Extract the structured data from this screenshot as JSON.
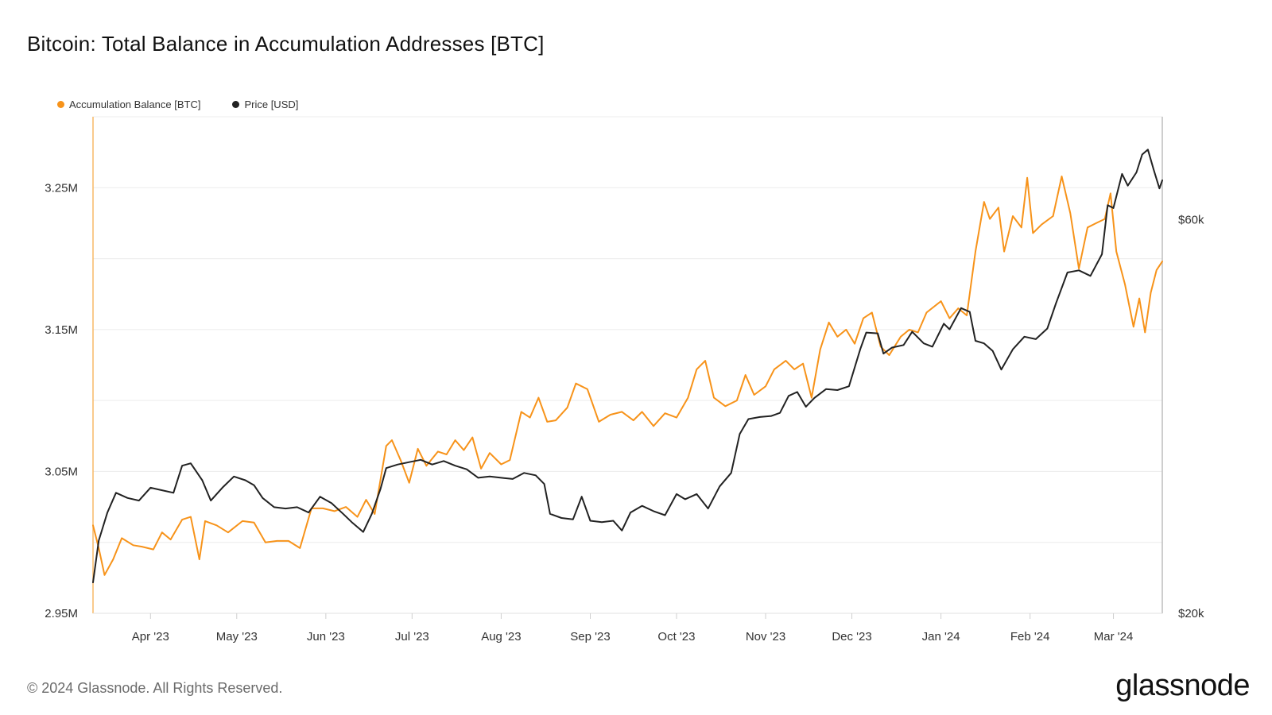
{
  "title": "Bitcoin: Total Balance in Accumulation Addresses [BTC]",
  "footer": "© 2024 Glassnode. All Rights Reserved.",
  "brand": "glassnode",
  "legend": [
    {
      "label": "Accumulation Balance [BTC]",
      "color": "#f7931a"
    },
    {
      "label": "Price [USD]",
      "color": "#222222"
    }
  ],
  "chart_data": {
    "type": "line",
    "title": "Bitcoin: Total Balance in Accumulation Addresses [BTC]",
    "x_range": [
      "2023-03-12",
      "2024-03-18"
    ],
    "x_ticks": [
      {
        "date": "2023-04-01",
        "label": "Apr '23"
      },
      {
        "date": "2023-05-01",
        "label": "May '23"
      },
      {
        "date": "2023-06-01",
        "label": "Jun '23"
      },
      {
        "date": "2023-07-01",
        "label": "Jul '23"
      },
      {
        "date": "2023-08-01",
        "label": "Aug '23"
      },
      {
        "date": "2023-09-01",
        "label": "Sep '23"
      },
      {
        "date": "2023-10-01",
        "label": "Oct '23"
      },
      {
        "date": "2023-11-01",
        "label": "Nov '23"
      },
      {
        "date": "2023-12-01",
        "label": "Dec '23"
      },
      {
        "date": "2024-01-01",
        "label": "Jan '24"
      },
      {
        "date": "2024-02-01",
        "label": "Feb '24"
      },
      {
        "date": "2024-03-01",
        "label": "Mar '24"
      }
    ],
    "y_left": {
      "min": 2950000,
      "max": 3300000,
      "ticks": [
        {
          "value": 2950000,
          "label": "2.95M"
        },
        {
          "value": 3050000,
          "label": "3.05M"
        },
        {
          "value": 3150000,
          "label": "3.15M"
        },
        {
          "value": 3250000,
          "label": "3.25M"
        }
      ]
    },
    "y_right": {
      "scale": "log",
      "min": 20000,
      "max": 80000,
      "ticks": [
        {
          "value": 20000,
          "label": "$20k"
        },
        {
          "value": 60000,
          "label": "$60k"
        }
      ]
    },
    "series": [
      {
        "name": "Accumulation Balance [BTC]",
        "axis": "left",
        "color": "#f7931a",
        "points": [
          [
            "2023-03-12",
            3012000
          ],
          [
            "2023-03-14",
            2996000
          ],
          [
            "2023-03-16",
            2977000
          ],
          [
            "2023-03-19",
            2988000
          ],
          [
            "2023-03-22",
            3003000
          ],
          [
            "2023-03-26",
            2998000
          ],
          [
            "2023-03-29",
            2997000
          ],
          [
            "2023-04-02",
            2995000
          ],
          [
            "2023-04-05",
            3007000
          ],
          [
            "2023-04-08",
            3002000
          ],
          [
            "2023-04-12",
            3016000
          ],
          [
            "2023-04-15",
            3018000
          ],
          [
            "2023-04-18",
            2988000
          ],
          [
            "2023-04-20",
            3015000
          ],
          [
            "2023-04-24",
            3012000
          ],
          [
            "2023-04-28",
            3007000
          ],
          [
            "2023-05-03",
            3015000
          ],
          [
            "2023-05-07",
            3014000
          ],
          [
            "2023-05-11",
            3000000
          ],
          [
            "2023-05-15",
            3001000
          ],
          [
            "2023-05-19",
            3001000
          ],
          [
            "2023-05-23",
            2996000
          ],
          [
            "2023-05-27",
            3024000
          ],
          [
            "2023-05-31",
            3024000
          ],
          [
            "2023-06-04",
            3022000
          ],
          [
            "2023-06-08",
            3025000
          ],
          [
            "2023-06-12",
            3018000
          ],
          [
            "2023-06-15",
            3030000
          ],
          [
            "2023-06-18",
            3020000
          ],
          [
            "2023-06-22",
            3068000
          ],
          [
            "2023-06-24",
            3072000
          ],
          [
            "2023-06-27",
            3058000
          ],
          [
            "2023-06-30",
            3042000
          ],
          [
            "2023-07-03",
            3066000
          ],
          [
            "2023-07-06",
            3054000
          ],
          [
            "2023-07-10",
            3064000
          ],
          [
            "2023-07-13",
            3062000
          ],
          [
            "2023-07-16",
            3072000
          ],
          [
            "2023-07-19",
            3065000
          ],
          [
            "2023-07-22",
            3074000
          ],
          [
            "2023-07-25",
            3052000
          ],
          [
            "2023-07-28",
            3063000
          ],
          [
            "2023-08-01",
            3055000
          ],
          [
            "2023-08-04",
            3058000
          ],
          [
            "2023-08-08",
            3092000
          ],
          [
            "2023-08-11",
            3088000
          ],
          [
            "2023-08-14",
            3102000
          ],
          [
            "2023-08-17",
            3085000
          ],
          [
            "2023-08-20",
            3086000
          ],
          [
            "2023-08-24",
            3095000
          ],
          [
            "2023-08-27",
            3112000
          ],
          [
            "2023-08-31",
            3108000
          ],
          [
            "2023-09-04",
            3085000
          ],
          [
            "2023-09-08",
            3090000
          ],
          [
            "2023-09-12",
            3092000
          ],
          [
            "2023-09-16",
            3086000
          ],
          [
            "2023-09-19",
            3092000
          ],
          [
            "2023-09-23",
            3082000
          ],
          [
            "2023-09-27",
            3091000
          ],
          [
            "2023-10-01",
            3088000
          ],
          [
            "2023-10-05",
            3102000
          ],
          [
            "2023-10-08",
            3122000
          ],
          [
            "2023-10-11",
            3128000
          ],
          [
            "2023-10-14",
            3102000
          ],
          [
            "2023-10-18",
            3096000
          ],
          [
            "2023-10-22",
            3100000
          ],
          [
            "2023-10-25",
            3118000
          ],
          [
            "2023-10-28",
            3104000
          ],
          [
            "2023-11-01",
            3110000
          ],
          [
            "2023-11-04",
            3122000
          ],
          [
            "2023-11-08",
            3128000
          ],
          [
            "2023-11-11",
            3122000
          ],
          [
            "2023-11-14",
            3126000
          ],
          [
            "2023-11-17",
            3102000
          ],
          [
            "2023-11-20",
            3136000
          ],
          [
            "2023-11-23",
            3155000
          ],
          [
            "2023-11-26",
            3145000
          ],
          [
            "2023-11-29",
            3150000
          ],
          [
            "2023-12-02",
            3140000
          ],
          [
            "2023-12-05",
            3158000
          ],
          [
            "2023-12-08",
            3162000
          ],
          [
            "2023-12-11",
            3138000
          ],
          [
            "2023-12-14",
            3132000
          ],
          [
            "2023-12-18",
            3145000
          ],
          [
            "2023-12-21",
            3150000
          ],
          [
            "2023-12-24",
            3148000
          ],
          [
            "2023-12-27",
            3162000
          ],
          [
            "2024-01-01",
            3170000
          ],
          [
            "2024-01-04",
            3158000
          ],
          [
            "2024-01-07",
            3165000
          ],
          [
            "2024-01-10",
            3160000
          ],
          [
            "2024-01-13",
            3205000
          ],
          [
            "2024-01-16",
            3240000
          ],
          [
            "2024-01-18",
            3228000
          ],
          [
            "2024-01-21",
            3236000
          ],
          [
            "2024-01-23",
            3205000
          ],
          [
            "2024-01-26",
            3230000
          ],
          [
            "2024-01-29",
            3222000
          ],
          [
            "2024-01-31",
            3257000
          ],
          [
            "2024-02-02",
            3218000
          ],
          [
            "2024-02-05",
            3224000
          ],
          [
            "2024-02-09",
            3230000
          ],
          [
            "2024-02-12",
            3258000
          ],
          [
            "2024-02-15",
            3232000
          ],
          [
            "2024-02-18",
            3193000
          ],
          [
            "2024-02-21",
            3222000
          ],
          [
            "2024-02-24",
            3225000
          ],
          [
            "2024-02-27",
            3228000
          ],
          [
            "2024-02-29",
            3246000
          ],
          [
            "2024-03-02",
            3205000
          ],
          [
            "2024-03-05",
            3182000
          ],
          [
            "2024-03-08",
            3152000
          ],
          [
            "2024-03-10",
            3172000
          ],
          [
            "2024-03-12",
            3148000
          ],
          [
            "2024-03-14",
            3176000
          ],
          [
            "2024-03-16",
            3192000
          ],
          [
            "2024-03-18",
            3198000
          ]
        ]
      },
      {
        "name": "Price [USD]",
        "axis": "right",
        "color": "#222222",
        "points": [
          [
            "2023-03-12",
            21800
          ],
          [
            "2023-03-14",
            24500
          ],
          [
            "2023-03-17",
            26500
          ],
          [
            "2023-03-20",
            28000
          ],
          [
            "2023-03-24",
            27600
          ],
          [
            "2023-03-28",
            27400
          ],
          [
            "2023-04-01",
            28400
          ],
          [
            "2023-04-05",
            28200
          ],
          [
            "2023-04-09",
            28000
          ],
          [
            "2023-04-12",
            30200
          ],
          [
            "2023-04-15",
            30400
          ],
          [
            "2023-04-19",
            29000
          ],
          [
            "2023-04-22",
            27400
          ],
          [
            "2023-04-26",
            28400
          ],
          [
            "2023-04-30",
            29300
          ],
          [
            "2023-05-04",
            29000
          ],
          [
            "2023-05-07",
            28600
          ],
          [
            "2023-05-10",
            27600
          ],
          [
            "2023-05-14",
            26900
          ],
          [
            "2023-05-18",
            26800
          ],
          [
            "2023-05-22",
            26900
          ],
          [
            "2023-05-26",
            26500
          ],
          [
            "2023-05-30",
            27700
          ],
          [
            "2023-06-03",
            27200
          ],
          [
            "2023-06-07",
            26400
          ],
          [
            "2023-06-10",
            25800
          ],
          [
            "2023-06-14",
            25100
          ],
          [
            "2023-06-17",
            26400
          ],
          [
            "2023-06-20",
            28300
          ],
          [
            "2023-06-22",
            30000
          ],
          [
            "2023-06-26",
            30300
          ],
          [
            "2023-06-30",
            30500
          ],
          [
            "2023-07-04",
            30700
          ],
          [
            "2023-07-08",
            30300
          ],
          [
            "2023-07-12",
            30600
          ],
          [
            "2023-07-16",
            30200
          ],
          [
            "2023-07-20",
            29900
          ],
          [
            "2023-07-24",
            29200
          ],
          [
            "2023-07-28",
            29300
          ],
          [
            "2023-08-01",
            29200
          ],
          [
            "2023-08-05",
            29100
          ],
          [
            "2023-08-09",
            29600
          ],
          [
            "2023-08-13",
            29400
          ],
          [
            "2023-08-16",
            28700
          ],
          [
            "2023-08-18",
            26400
          ],
          [
            "2023-08-22",
            26100
          ],
          [
            "2023-08-26",
            26000
          ],
          [
            "2023-08-29",
            27700
          ],
          [
            "2023-09-01",
            25900
          ],
          [
            "2023-09-05",
            25800
          ],
          [
            "2023-09-09",
            25900
          ],
          [
            "2023-09-12",
            25200
          ],
          [
            "2023-09-15",
            26500
          ],
          [
            "2023-09-19",
            27000
          ],
          [
            "2023-09-23",
            26600
          ],
          [
            "2023-09-27",
            26300
          ],
          [
            "2023-10-01",
            27900
          ],
          [
            "2023-10-04",
            27500
          ],
          [
            "2023-10-08",
            27900
          ],
          [
            "2023-10-12",
            26800
          ],
          [
            "2023-10-16",
            28500
          ],
          [
            "2023-10-20",
            29600
          ],
          [
            "2023-10-23",
            33000
          ],
          [
            "2023-10-26",
            34400
          ],
          [
            "2023-10-30",
            34600
          ],
          [
            "2023-11-03",
            34700
          ],
          [
            "2023-11-06",
            35000
          ],
          [
            "2023-11-09",
            36700
          ],
          [
            "2023-11-12",
            37100
          ],
          [
            "2023-11-15",
            35600
          ],
          [
            "2023-11-18",
            36500
          ],
          [
            "2023-11-22",
            37400
          ],
          [
            "2023-11-26",
            37300
          ],
          [
            "2023-11-30",
            37700
          ],
          [
            "2023-12-04",
            41900
          ],
          [
            "2023-12-06",
            43800
          ],
          [
            "2023-12-10",
            43700
          ],
          [
            "2023-12-12",
            41300
          ],
          [
            "2023-12-15",
            42000
          ],
          [
            "2023-12-19",
            42300
          ],
          [
            "2023-12-22",
            43900
          ],
          [
            "2023-12-26",
            42500
          ],
          [
            "2023-12-29",
            42100
          ],
          [
            "2024-01-02",
            44900
          ],
          [
            "2024-01-04",
            44200
          ],
          [
            "2024-01-08",
            46900
          ],
          [
            "2024-01-11",
            46400
          ],
          [
            "2024-01-13",
            42800
          ],
          [
            "2024-01-16",
            42500
          ],
          [
            "2024-01-19",
            41600
          ],
          [
            "2024-01-22",
            39500
          ],
          [
            "2024-01-26",
            41800
          ],
          [
            "2024-01-30",
            43300
          ],
          [
            "2024-02-03",
            43000
          ],
          [
            "2024-02-07",
            44300
          ],
          [
            "2024-02-10",
            47500
          ],
          [
            "2024-02-14",
            51800
          ],
          [
            "2024-02-18",
            52100
          ],
          [
            "2024-02-22",
            51300
          ],
          [
            "2024-02-26",
            54500
          ],
          [
            "2024-02-28",
            62500
          ],
          [
            "2024-03-01",
            62000
          ],
          [
            "2024-03-04",
            68200
          ],
          [
            "2024-03-06",
            66000
          ],
          [
            "2024-03-09",
            68500
          ],
          [
            "2024-03-11",
            72000
          ],
          [
            "2024-03-13",
            73000
          ],
          [
            "2024-03-15",
            69000
          ],
          [
            "2024-03-17",
            65500
          ],
          [
            "2024-03-18",
            67000
          ]
        ]
      }
    ],
    "grid": true,
    "legend_position": "top-left"
  }
}
